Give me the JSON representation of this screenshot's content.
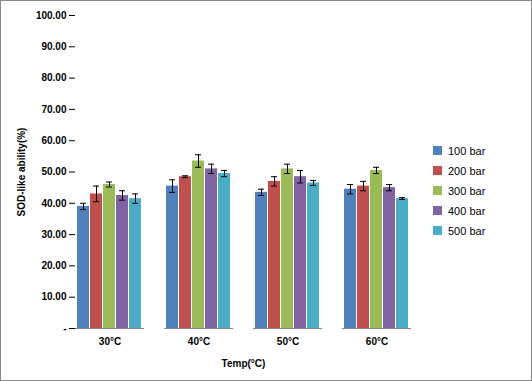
{
  "chart_data": {
    "type": "bar",
    "x_label": "Temp(°C)",
    "y_label": "SOD-like ability(%)",
    "categories": [
      "30°C",
      "40°C",
      "50°C",
      "60°C"
    ],
    "series": [
      {
        "name": "100 bar",
        "color": "#4F81BD",
        "values": [
          39.0,
          45.5,
          43.5,
          44.5
        ],
        "errors": [
          1.0,
          2.0,
          1.0,
          1.5
        ]
      },
      {
        "name": "200 bar",
        "color": "#C0504D",
        "values": [
          43.0,
          48.5,
          47.0,
          45.5
        ],
        "errors": [
          2.5,
          0.3,
          1.5,
          1.5
        ]
      },
      {
        "name": "300 bar",
        "color": "#9BBB59",
        "values": [
          46.0,
          53.5,
          51.0,
          50.5
        ],
        "errors": [
          0.8,
          2.0,
          1.5,
          1.0
        ]
      },
      {
        "name": "400 bar",
        "color": "#8064A2",
        "values": [
          42.5,
          51.0,
          48.5,
          45.0
        ],
        "errors": [
          1.5,
          1.5,
          2.0,
          1.0
        ]
      },
      {
        "name": "500 bar",
        "color": "#4BACC6",
        "values": [
          41.5,
          49.5,
          46.5,
          41.5
        ],
        "errors": [
          1.5,
          1.0,
          0.8,
          0.3
        ]
      }
    ],
    "ylim": [
      0,
      100
    ],
    "yticks": [
      {
        "value": 0,
        "label": "-"
      },
      {
        "value": 10,
        "label": "10.00"
      },
      {
        "value": 20,
        "label": "20.00"
      },
      {
        "value": 30,
        "label": "30.00"
      },
      {
        "value": 40,
        "label": "40.00"
      },
      {
        "value": 50,
        "label": "50.00"
      },
      {
        "value": 60,
        "label": "60.00"
      },
      {
        "value": 70,
        "label": "70.00"
      },
      {
        "value": 80,
        "label": "80.00"
      },
      {
        "value": 90,
        "label": "90.00"
      },
      {
        "value": 100,
        "label": "100.00"
      }
    ],
    "grid": false,
    "legend": "right"
  }
}
